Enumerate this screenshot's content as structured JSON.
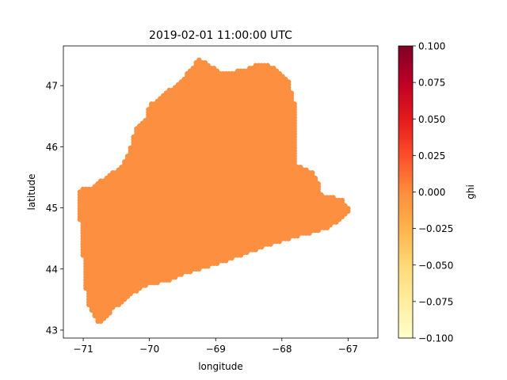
{
  "chart_data": {
    "type": "scatter",
    "title": "2019-02-01 11:00:00 UTC",
    "xlabel": "longitude",
    "ylabel": "latitude",
    "xlim": [
      -71.3,
      -66.55
    ],
    "ylim": [
      42.87,
      47.65
    ],
    "xticks": [
      -71,
      -70,
      -69,
      -68,
      -67
    ],
    "xtick_labels": [
      "−71",
      "−70",
      "−69",
      "−68",
      "−67"
    ],
    "yticks": [
      43,
      44,
      45,
      46,
      47
    ],
    "ytick_labels": [
      "43",
      "44",
      "45",
      "46",
      "47"
    ],
    "grid": false,
    "point_color": "#fd9040",
    "point_value_ghi": 0.0,
    "region_outline": [
      [
        -71.05,
        45.3
      ],
      [
        -70.85,
        45.35
      ],
      [
        -70.8,
        45.4
      ],
      [
        -70.6,
        45.55
      ],
      [
        -70.4,
        45.7
      ],
      [
        -70.3,
        45.95
      ],
      [
        -70.2,
        46.3
      ],
      [
        -70.05,
        46.45
      ],
      [
        -70.0,
        46.68
      ],
      [
        -69.5,
        47.1
      ],
      [
        -69.25,
        47.45
      ],
      [
        -69.05,
        47.3
      ],
      [
        -68.9,
        47.22
      ],
      [
        -68.6,
        47.25
      ],
      [
        -68.4,
        47.35
      ],
      [
        -68.2,
        47.35
      ],
      [
        -68.05,
        47.25
      ],
      [
        -67.9,
        47.1
      ],
      [
        -67.8,
        46.7
      ],
      [
        -67.8,
        46.0
      ],
      [
        -67.8,
        45.7
      ],
      [
        -67.55,
        45.6
      ],
      [
        -67.45,
        45.4
      ],
      [
        -67.4,
        45.2
      ],
      [
        -67.1,
        45.15
      ],
      [
        -66.95,
        44.95
      ],
      [
        -67.1,
        44.8
      ],
      [
        -67.35,
        44.65
      ],
      [
        -67.7,
        44.55
      ],
      [
        -68.0,
        44.45
      ],
      [
        -68.3,
        44.35
      ],
      [
        -68.55,
        44.25
      ],
      [
        -68.8,
        44.15
      ],
      [
        -69.1,
        44.05
      ],
      [
        -69.4,
        43.95
      ],
      [
        -69.7,
        43.8
      ],
      [
        -70.0,
        43.75
      ],
      [
        -70.25,
        43.6
      ],
      [
        -70.35,
        43.5
      ],
      [
        -70.55,
        43.35
      ],
      [
        -70.65,
        43.2
      ],
      [
        -70.75,
        43.1
      ],
      [
        -70.85,
        43.25
      ],
      [
        -70.95,
        43.5
      ],
      [
        -70.98,
        44.0
      ],
      [
        -71.02,
        44.3
      ],
      [
        -71.05,
        44.8
      ],
      [
        -71.05,
        45.0
      ]
    ],
    "point_spacing_deg": 0.045,
    "colorbar": {
      "label": "ghi",
      "min": -0.1,
      "max": 0.1,
      "ticks": [
        0.1,
        0.075,
        0.05,
        0.025,
        0.0,
        -0.025,
        -0.05,
        -0.075,
        -0.1
      ],
      "tick_labels": [
        "0.100",
        "0.075",
        "0.050",
        "0.025",
        "0.000",
        "−0.025",
        "−0.050",
        "−0.075",
        "−0.100"
      ],
      "colormap": "YlOrRd",
      "stops": [
        "#ffffcc",
        "#ffeda0",
        "#fed976",
        "#feb24c",
        "#fd8d3c",
        "#fc4e2a",
        "#e31a1c",
        "#bd0026",
        "#800026"
      ]
    }
  }
}
